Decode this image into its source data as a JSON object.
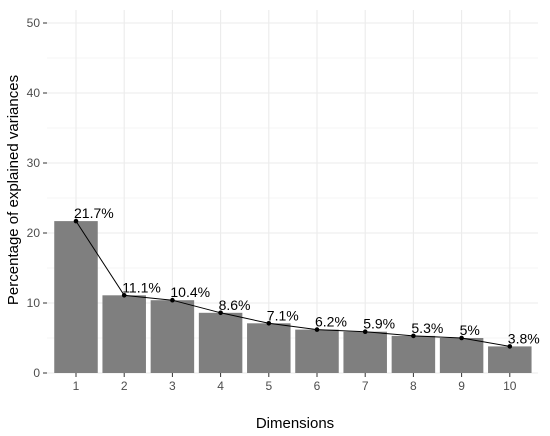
{
  "chart_data": {
    "type": "bar",
    "categories": [
      "1",
      "2",
      "3",
      "4",
      "5",
      "6",
      "7",
      "8",
      "9",
      "10"
    ],
    "values": [
      21.7,
      11.1,
      10.4,
      8.6,
      7.1,
      6.2,
      5.9,
      5.3,
      5.0,
      3.8
    ],
    "data_labels": [
      "21.7%",
      "11.1%",
      "10.4%",
      "8.6%",
      "7.1%",
      "6.2%",
      "5.9%",
      "5.3%",
      "5%",
      "3.8%"
    ],
    "xlabel": "Dimensions",
    "ylabel": "Percentage of explained variances",
    "ylim": [
      0,
      50
    ],
    "yticks": [
      "0",
      "10",
      "20",
      "30",
      "40",
      "50"
    ],
    "line_overlay": true,
    "grid": true,
    "bar_color": "#7f7f7f",
    "panel_color": "#ffffff",
    "grid_color": "#ebebeb",
    "line_color": "#000000"
  }
}
